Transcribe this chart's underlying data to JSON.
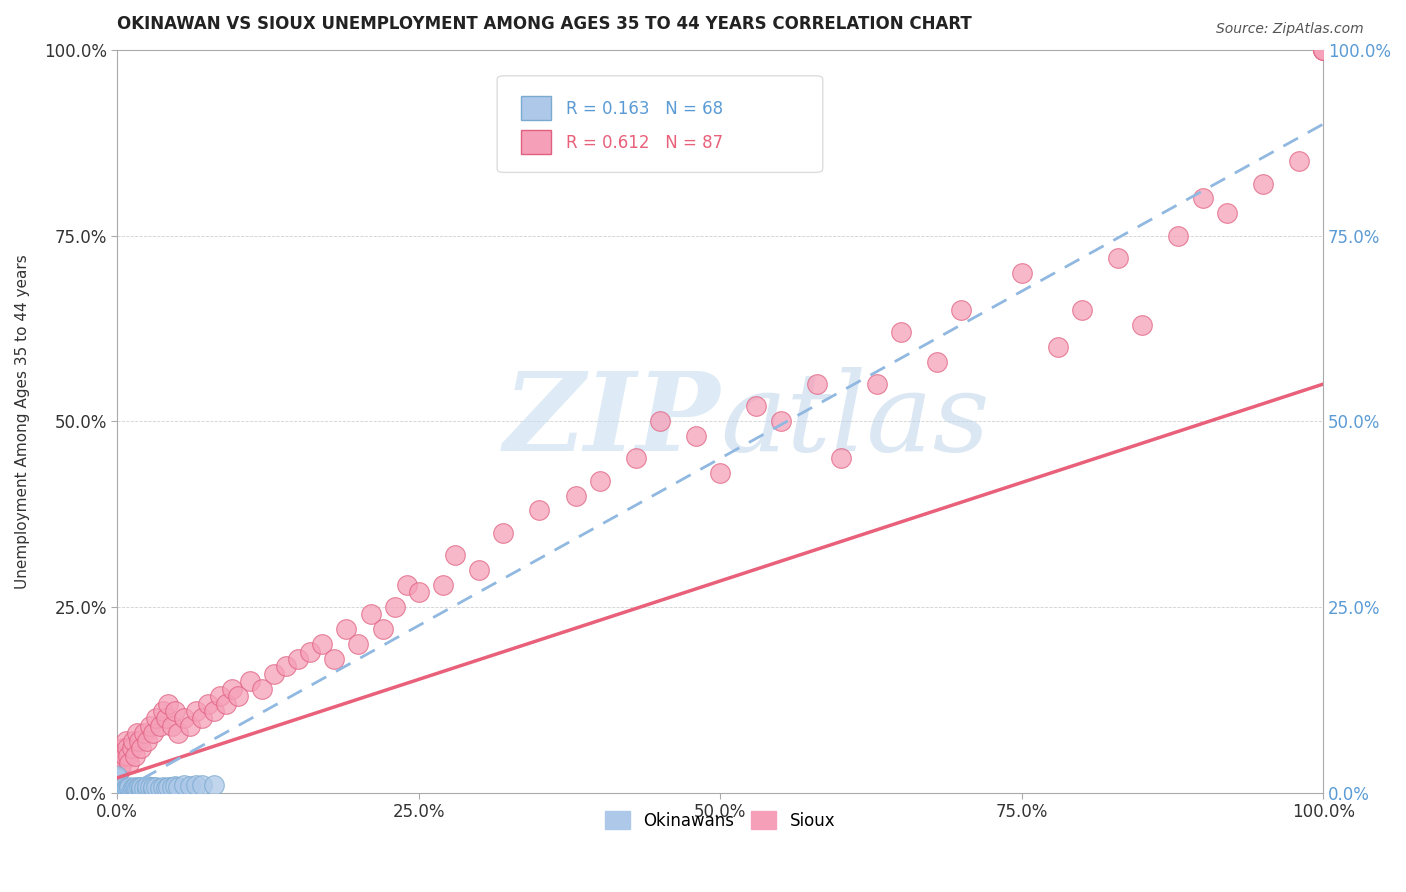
{
  "title": "OKINAWAN VS SIOUX UNEMPLOYMENT AMONG AGES 35 TO 44 YEARS CORRELATION CHART",
  "source": "Source: ZipAtlas.com",
  "ylabel": "Unemployment Among Ages 35 to 44 years",
  "legend_label_1": "Okinawans",
  "legend_label_2": "Sioux",
  "r1": 0.163,
  "n1": 68,
  "r2": 0.612,
  "n2": 87,
  "color_okinawan": "#adc8e8",
  "color_sioux": "#f5a0b8",
  "color_okinawan_edge": "#7aaad0",
  "color_sioux_edge": "#e06080",
  "color_okinawan_line": "#90b8e0",
  "color_sioux_line": "#e8607a",
  "color_r1_text": "#5b9bd5",
  "color_r2_text": "#e8607a",
  "okinawan_x": [
    0.0,
    0.0,
    0.0,
    0.0,
    0.0,
    0.0,
    0.0,
    0.0,
    0.0,
    0.0,
    0.0,
    0.0,
    0.0,
    0.0,
    0.0,
    0.0,
    0.0,
    0.0,
    0.0,
    0.0,
    0.0,
    0.0,
    0.0,
    0.0,
    0.0,
    0.0,
    0.0,
    0.0,
    0.0,
    0.0,
    0.002,
    0.003,
    0.004,
    0.005,
    0.005,
    0.006,
    0.007,
    0.008,
    0.01,
    0.01,
    0.01,
    0.012,
    0.013,
    0.015,
    0.015,
    0.016,
    0.018,
    0.02,
    0.02,
    0.022,
    0.025,
    0.025,
    0.027,
    0.03,
    0.03,
    0.032,
    0.035,
    0.038,
    0.04,
    0.042,
    0.045,
    0.048,
    0.05,
    0.055,
    0.06,
    0.065,
    0.07,
    0.08
  ],
  "okinawan_y": [
    0.0,
    0.0,
    0.0,
    0.0,
    0.0,
    0.0,
    0.0,
    0.0,
    0.0,
    0.0,
    0.0,
    0.0,
    0.0,
    0.0,
    0.0,
    0.002,
    0.003,
    0.005,
    0.005,
    0.008,
    0.01,
    0.01,
    0.01,
    0.012,
    0.015,
    0.015,
    0.018,
    0.02,
    0.02,
    0.022,
    0.003,
    0.004,
    0.006,
    0.003,
    0.008,
    0.004,
    0.006,
    0.005,
    0.003,
    0.005,
    0.008,
    0.004,
    0.006,
    0.005,
    0.008,
    0.006,
    0.007,
    0.005,
    0.008,
    0.006,
    0.005,
    0.009,
    0.007,
    0.005,
    0.008,
    0.007,
    0.006,
    0.008,
    0.006,
    0.008,
    0.007,
    0.009,
    0.008,
    0.01,
    0.009,
    0.01,
    0.01,
    0.01
  ],
  "sioux_x": [
    0.0,
    0.0,
    0.0,
    0.002,
    0.003,
    0.004,
    0.005,
    0.006,
    0.007,
    0.008,
    0.009,
    0.01,
    0.012,
    0.013,
    0.015,
    0.016,
    0.018,
    0.02,
    0.022,
    0.025,
    0.027,
    0.03,
    0.032,
    0.035,
    0.038,
    0.04,
    0.042,
    0.045,
    0.048,
    0.05,
    0.055,
    0.06,
    0.065,
    0.07,
    0.075,
    0.08,
    0.085,
    0.09,
    0.095,
    0.1,
    0.11,
    0.12,
    0.13,
    0.14,
    0.15,
    0.16,
    0.17,
    0.18,
    0.19,
    0.2,
    0.21,
    0.22,
    0.23,
    0.24,
    0.25,
    0.27,
    0.28,
    0.3,
    0.32,
    0.35,
    0.38,
    0.4,
    0.43,
    0.45,
    0.48,
    0.5,
    0.53,
    0.55,
    0.58,
    0.6,
    0.63,
    0.65,
    0.68,
    0.7,
    0.75,
    0.78,
    0.8,
    0.83,
    0.85,
    0.88,
    0.9,
    0.92,
    0.95,
    0.98,
    1.0,
    1.0,
    1.0
  ],
  "sioux_y": [
    0.0,
    0.02,
    0.04,
    0.03,
    0.05,
    0.04,
    0.06,
    0.05,
    0.07,
    0.06,
    0.05,
    0.04,
    0.06,
    0.07,
    0.05,
    0.08,
    0.07,
    0.06,
    0.08,
    0.07,
    0.09,
    0.08,
    0.1,
    0.09,
    0.11,
    0.1,
    0.12,
    0.09,
    0.11,
    0.08,
    0.1,
    0.09,
    0.11,
    0.1,
    0.12,
    0.11,
    0.13,
    0.12,
    0.14,
    0.13,
    0.15,
    0.14,
    0.16,
    0.17,
    0.18,
    0.19,
    0.2,
    0.18,
    0.22,
    0.2,
    0.24,
    0.22,
    0.25,
    0.28,
    0.27,
    0.28,
    0.32,
    0.3,
    0.35,
    0.38,
    0.4,
    0.42,
    0.45,
    0.5,
    0.48,
    0.43,
    0.52,
    0.5,
    0.55,
    0.45,
    0.55,
    0.62,
    0.58,
    0.65,
    0.7,
    0.6,
    0.65,
    0.72,
    0.63,
    0.75,
    0.8,
    0.78,
    0.82,
    0.85,
    1.0,
    1.0,
    1.0
  ],
  "xmin": 0.0,
  "xmax": 1.0,
  "ymin": 0.0,
  "ymax": 1.0,
  "xticks": [
    0.0,
    0.25,
    0.5,
    0.75,
    1.0
  ],
  "yticks": [
    0.0,
    0.25,
    0.5,
    0.75,
    1.0
  ],
  "xticklabels": [
    "0.0%",
    "25.0%",
    "50.0%",
    "75.0%",
    "100.0%"
  ],
  "yticklabels": [
    "0.0%",
    "25.0%",
    "50.0%",
    "75.0%",
    "100.0%"
  ],
  "right_ytick_color": "#5b9bd5",
  "sioux_line_x0": 0.0,
  "sioux_line_y0": 0.02,
  "sioux_line_x1": 1.0,
  "sioux_line_y1": 0.55,
  "okinawan_line_x0": 0.0,
  "okinawan_line_y0": 0.0,
  "okinawan_line_x1": 1.0,
  "okinawan_line_y1": 0.9,
  "background_color": "#ffffff"
}
